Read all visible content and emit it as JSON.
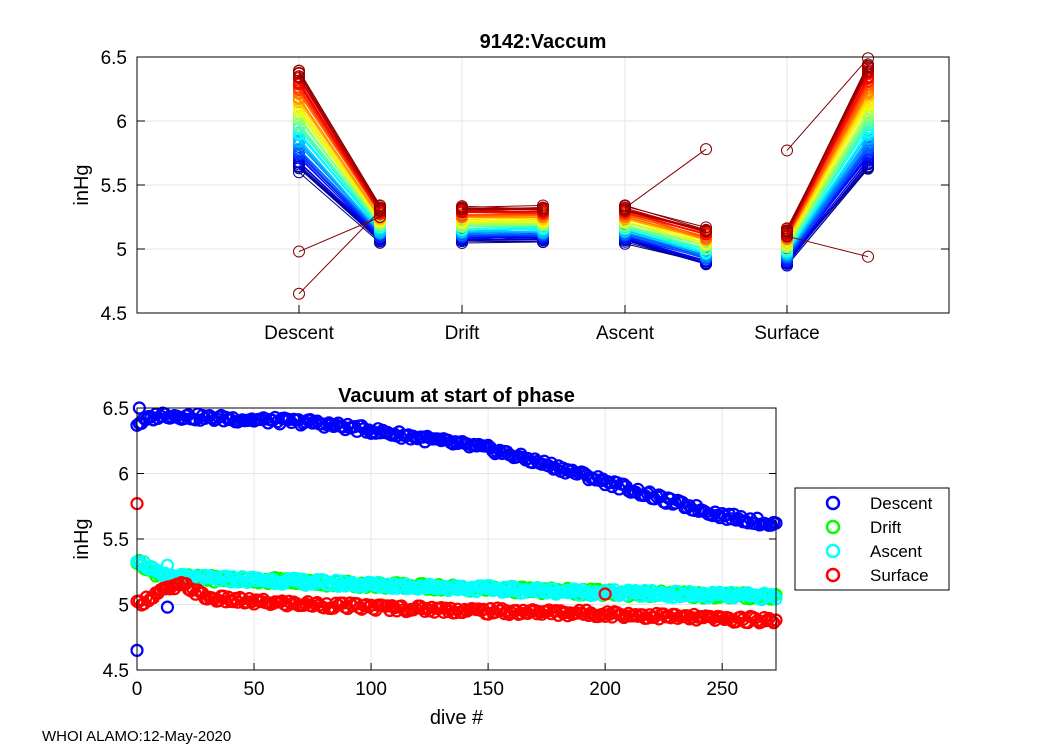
{
  "footer": "WHOI ALAMO:12-May-2020",
  "colors": {
    "descent": "#0000ff",
    "drift": "#00ff00",
    "ascent": "#00ffff",
    "surface": "#ff0000",
    "grid": "#e6e6e6",
    "axis": "#000000"
  },
  "chart_data": [
    {
      "type": "line",
      "title": "9142:Vaccum",
      "xlabel": "",
      "ylabel": "inHg",
      "ylim": [
        4.5,
        6.5
      ],
      "yticks": [
        "4.5",
        "5",
        "5.5",
        "6",
        "6.5"
      ],
      "categories": [
        "Descent",
        "Drift",
        "Ascent",
        "Surface"
      ],
      "grid": true,
      "colormap": "jet (dive 1 → 273)",
      "n_dives": 273,
      "segments": [
        {
          "name": "Descent",
          "start_first": 6.4,
          "start_last": 5.62,
          "end_first": 5.33,
          "end_last": 5.06
        },
        {
          "name": "Drift",
          "start_first": 5.33,
          "start_last": 5.06,
          "end_first": 5.33,
          "end_last": 5.06
        },
        {
          "name": "Ascent",
          "start_first": 5.33,
          "start_last": 5.06,
          "end_first": 5.16,
          "end_last": 4.88
        },
        {
          "name": "Surface",
          "start_first": 5.16,
          "start_last": 4.88,
          "end_first": 6.45,
          "end_last": 5.62
        }
      ],
      "outliers": [
        {
          "phase": "Descent",
          "start": 4.98,
          "end": 5.25
        },
        {
          "phase": "Descent",
          "start": 4.65,
          "end": 5.3
        },
        {
          "phase": "Ascent",
          "start": 5.32,
          "end": 5.78
        },
        {
          "phase": "Surface",
          "start": 5.77,
          "end": 6.49
        },
        {
          "phase": "Surface",
          "start": 5.1,
          "end": 4.94
        }
      ]
    },
    {
      "type": "scatter",
      "title": "Vacuum at start of phase",
      "xlabel": "dive #",
      "ylabel": "inHg",
      "xlim": [
        0,
        273
      ],
      "ylim": [
        4.5,
        6.5
      ],
      "xticks": [
        "0",
        "50",
        "100",
        "150",
        "200",
        "250"
      ],
      "yticks": [
        "4.5",
        "5",
        "5.5",
        "6",
        "6.5"
      ],
      "grid": true,
      "legend_position": "right",
      "series": [
        {
          "name": "Descent",
          "color": "#0000ff",
          "points": [
            [
              0,
              6.38
            ],
            [
              10,
              6.45
            ],
            [
              25,
              6.43
            ],
            [
              50,
              6.41
            ],
            [
              75,
              6.39
            ],
            [
              100,
              6.33
            ],
            [
              125,
              6.26
            ],
            [
              150,
              6.19
            ],
            [
              175,
              6.07
            ],
            [
              200,
              5.94
            ],
            [
              225,
              5.8
            ],
            [
              250,
              5.68
            ],
            [
              273,
              5.61
            ]
          ]
        },
        {
          "name": "Drift",
          "color": "#00ff00",
          "points": [
            [
              0,
              5.33
            ],
            [
              10,
              5.22
            ],
            [
              25,
              5.2
            ],
            [
              50,
              5.19
            ],
            [
              100,
              5.15
            ],
            [
              150,
              5.12
            ],
            [
              200,
              5.09
            ],
            [
              250,
              5.07
            ],
            [
              273,
              5.06
            ]
          ]
        },
        {
          "name": "Ascent",
          "color": "#00ffff",
          "points": [
            [
              0,
              5.35
            ],
            [
              10,
              5.22
            ],
            [
              25,
              5.2
            ],
            [
              50,
              5.19
            ],
            [
              100,
              5.15
            ],
            [
              150,
              5.12
            ],
            [
              200,
              5.09
            ],
            [
              250,
              5.07
            ],
            [
              273,
              5.06
            ]
          ]
        },
        {
          "name": "Surface",
          "color": "#ff0000",
          "points": [
            [
              0,
              5.0
            ],
            [
              10,
              5.1
            ],
            [
              20,
              5.15
            ],
            [
              30,
              5.05
            ],
            [
              50,
              5.02
            ],
            [
              100,
              4.98
            ],
            [
              150,
              4.95
            ],
            [
              200,
              4.93
            ],
            [
              250,
              4.89
            ],
            [
              273,
              4.88
            ]
          ]
        }
      ],
      "outliers": [
        {
          "series": "Descent",
          "x": 1,
          "y": 6.5
        },
        {
          "series": "Descent",
          "x": 0,
          "y": 4.65
        },
        {
          "series": "Descent",
          "x": 13,
          "y": 4.98
        },
        {
          "series": "Surface",
          "x": 0,
          "y": 5.77
        },
        {
          "series": "Surface",
          "x": 200,
          "y": 5.08
        },
        {
          "series": "Ascent",
          "x": 13,
          "y": 5.3
        }
      ]
    }
  ]
}
